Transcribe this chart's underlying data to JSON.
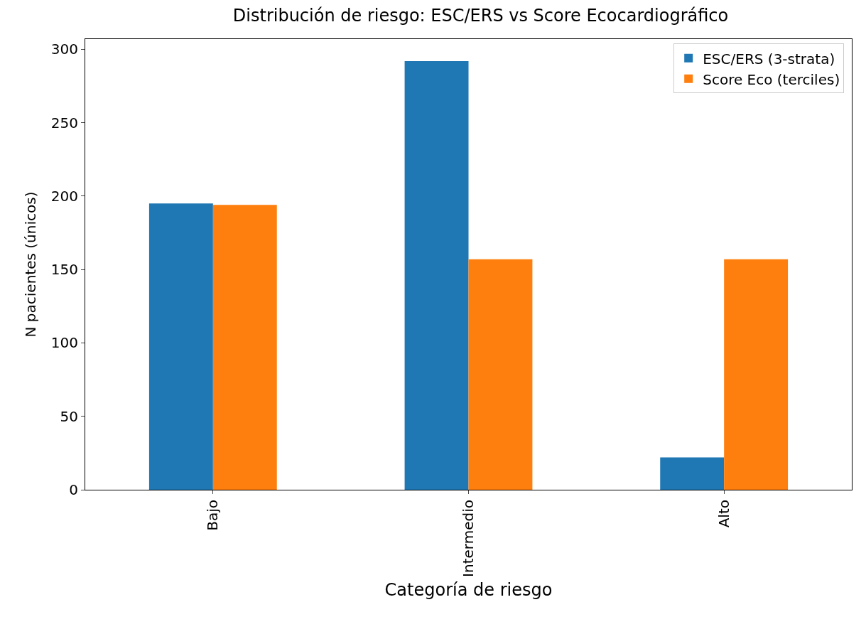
{
  "chart_data": {
    "type": "bar",
    "title": "Distribución de riesgo: ESC/ERS vs Score Ecocardiográfico",
    "xlabel": "Categoría de riesgo",
    "ylabel": "N pacientes (únicos)",
    "categories": [
      "Bajo",
      "Intermedio",
      "Alto"
    ],
    "series": [
      {
        "name": "ESC/ERS (3-strata)",
        "color": "#1f77b4",
        "values": [
          195,
          292,
          22
        ]
      },
      {
        "name": "Score Eco (terciles)",
        "color": "#ff7f0e",
        "values": [
          194,
          157,
          157
        ]
      }
    ],
    "ylim": [
      0,
      307
    ],
    "yticks": [
      0,
      50,
      100,
      150,
      200,
      250,
      300
    ],
    "legend": "top right"
  }
}
